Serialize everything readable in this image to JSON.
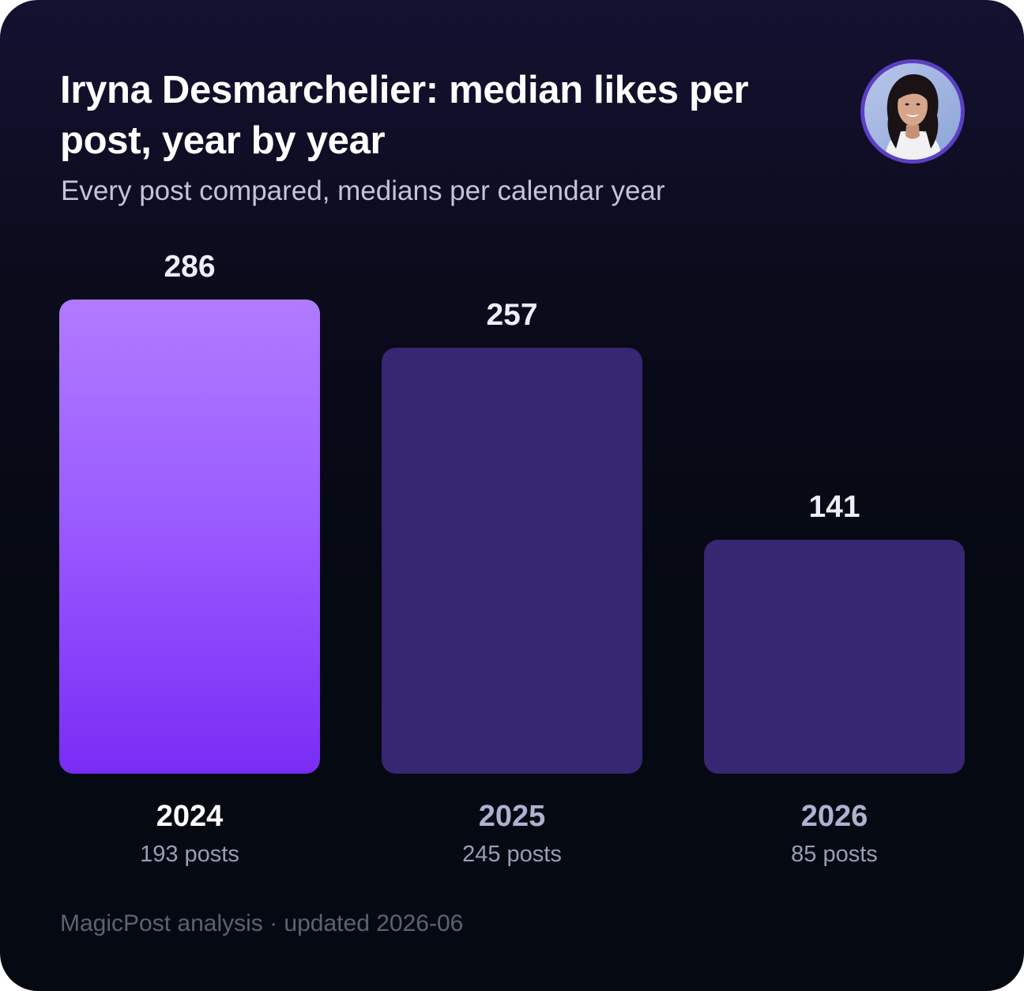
{
  "title": "Iryna Desmarchelier: median likes per post, year by year",
  "subtitle": "Every post compared, medians per calendar year",
  "footer": "MagicPost analysis · updated 2026-06",
  "avatar_icon": "profile-photo",
  "colors": {
    "highlight_bar": "#9b5cff",
    "muted_bar": "#372672",
    "background": "#050a12"
  },
  "chart_data": {
    "type": "bar",
    "title": "Iryna Desmarchelier: median likes per post, year by year",
    "subtitle": "Every post compared, medians per calendar year",
    "categories": [
      "2024",
      "2025",
      "2026"
    ],
    "values": [
      286,
      257,
      141
    ],
    "value_labels": [
      "286",
      "257",
      "141"
    ],
    "post_counts": [
      "193 posts",
      "245 posts",
      "85 posts"
    ],
    "highlighted": "2024",
    "xlabel": "",
    "ylabel": "",
    "ylim": [
      0,
      286
    ],
    "grid": false
  }
}
